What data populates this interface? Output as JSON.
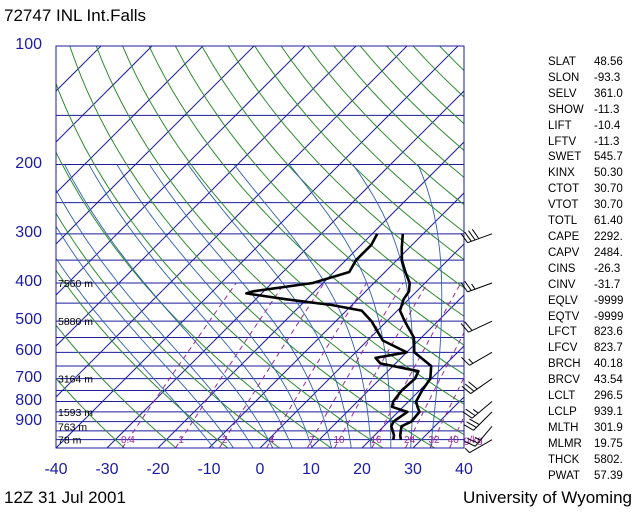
{
  "header": {
    "title": "72747 INL Int.Falls"
  },
  "footer": {
    "datetime": "12Z 31 Jul 2001",
    "source": "University of Wyoming"
  },
  "colors": {
    "isobar": "#1c1c9c",
    "isotherm": "#1c1c9c",
    "dry_adiabat": "#2e8b2e",
    "moist_adiabat": "#2d5fb0",
    "mixing_ratio": "#9a2a9a",
    "profile": "#000000",
    "axis_label": "#1a1aa6"
  },
  "chart_data": {
    "type": "line",
    "chart_kind": "skew-T log-P",
    "y_axis": {
      "scale": "log",
      "direction": "decreasing-upward",
      "range": [
        1050,
        100
      ],
      "ticks": [
        100,
        200,
        300,
        400,
        500,
        600,
        700,
        800,
        900
      ]
    },
    "x_axis": {
      "range": [
        -40,
        40
      ],
      "tick_labels": [
        "-40",
        "-30",
        "-20",
        "-10",
        "0",
        "10",
        "20",
        "30",
        "40"
      ]
    },
    "height_labels": [
      {
        "p": 400,
        "text": "7560 m"
      },
      {
        "p": 500,
        "text": "5880 m"
      },
      {
        "p": 700,
        "text": "3164 m"
      },
      {
        "p": 850,
        "text": "1593 m"
      },
      {
        "p": 925,
        "text": "763 m"
      },
      {
        "p": 1000,
        "text": "78 m"
      }
    ],
    "mixing_ratio_labels": [
      "0.4",
      "1",
      "2",
      "4",
      "7",
      "10",
      "16",
      "24",
      "32",
      "40",
      "g/kg"
    ],
    "series": [
      {
        "points": [
          [
            1000,
            26.0
          ],
          [
            975,
            25.0
          ],
          [
            925,
            23.5
          ],
          [
            900,
            24.5
          ],
          [
            850,
            24.2
          ],
          [
            825,
            22.8
          ],
          [
            800,
            21.5
          ],
          [
            750,
            20.5
          ],
          [
            700,
            19.8
          ],
          [
            650,
            17.5
          ],
          [
            600,
            11.5
          ],
          [
            550,
            8.5
          ],
          [
            500,
            3.5
          ],
          [
            470,
            0.5
          ],
          [
            440,
            -1.0
          ],
          [
            420,
            -1.5
          ],
          [
            400,
            -3.0
          ],
          [
            375,
            -6.0
          ],
          [
            350,
            -9.0
          ],
          [
            325,
            -11.5
          ],
          [
            300,
            -14.0
          ]
        ]
      },
      {
        "points": [
          [
            1000,
            24.5
          ],
          [
            975,
            23.8
          ],
          [
            925,
            21.5
          ],
          [
            900,
            21.0
          ],
          [
            850,
            21.8
          ],
          [
            825,
            17.8
          ],
          [
            800,
            17.0
          ],
          [
            750,
            16.5
          ],
          [
            700,
            16.8
          ],
          [
            670,
            16.0
          ],
          [
            640,
            7.0
          ],
          [
            620,
            5.0
          ],
          [
            600,
            10.0
          ],
          [
            560,
            3.0
          ],
          [
            500,
            -3.0
          ],
          [
            470,
            -7.0
          ],
          [
            455,
            -14.0
          ],
          [
            440,
            -24.0
          ],
          [
            430,
            -30.0
          ],
          [
            425,
            -33.0
          ],
          [
            420,
            -32.0
          ],
          [
            400,
            -22.0
          ],
          [
            375,
            -17.0
          ],
          [
            350,
            -18.0
          ],
          [
            320,
            -18.0
          ],
          [
            300,
            -19.0
          ]
        ]
      }
    ]
  },
  "indices": [
    {
      "name": "SLAT",
      "value": "48.56"
    },
    {
      "name": "SLON",
      "value": "-93.3"
    },
    {
      "name": "SELV",
      "value": "361.0"
    },
    {
      "name": "SHOW",
      "value": "-11.3"
    },
    {
      "name": "LIFT",
      "value": "-10.4"
    },
    {
      "name": "LFTV",
      "value": "-11.3"
    },
    {
      "name": "SWET",
      "value": "545.7"
    },
    {
      "name": "KINX",
      "value": "50.30"
    },
    {
      "name": "CTOT",
      "value": "30.70"
    },
    {
      "name": "VTOT",
      "value": "30.70"
    },
    {
      "name": "TOTL",
      "value": "61.40"
    },
    {
      "name": "CAPE",
      "value": "2292."
    },
    {
      "name": "CAPV",
      "value": "2484."
    },
    {
      "name": "CINS",
      "value": "-26.3"
    },
    {
      "name": "CINV",
      "value": "-31.7"
    },
    {
      "name": "EQLV",
      "value": "-9999"
    },
    {
      "name": "EQTV",
      "value": "-9999"
    },
    {
      "name": "LFCT",
      "value": "823.6"
    },
    {
      "name": "LFCV",
      "value": "823.7"
    },
    {
      "name": "BRCH",
      "value": "40.18"
    },
    {
      "name": "BRCV",
      "value": "43.54"
    },
    {
      "name": "LCLT",
      "value": "296.5"
    },
    {
      "name": "LCLP",
      "value": "939.1"
    },
    {
      "name": "MLTH",
      "value": "301.9"
    },
    {
      "name": "MLMR",
      "value": "19.75"
    },
    {
      "name": "THCK",
      "value": "5802."
    },
    {
      "name": "PWAT",
      "value": "57.39"
    }
  ],
  "wind_barbs": [
    {
      "p": 300,
      "dir": 250,
      "speed": 40
    },
    {
      "p": 400,
      "dir": 250,
      "speed": 25
    },
    {
      "p": 500,
      "dir": 245,
      "speed": 20
    },
    {
      "p": 600,
      "dir": 240,
      "speed": 15
    },
    {
      "p": 700,
      "dir": 235,
      "speed": 30
    },
    {
      "p": 800,
      "dir": 230,
      "speed": 25
    },
    {
      "p": 850,
      "dir": 225,
      "speed": 30
    },
    {
      "p": 925,
      "dir": 220,
      "speed": 25
    },
    {
      "p": 1000,
      "dir": 240,
      "speed": 5
    }
  ]
}
